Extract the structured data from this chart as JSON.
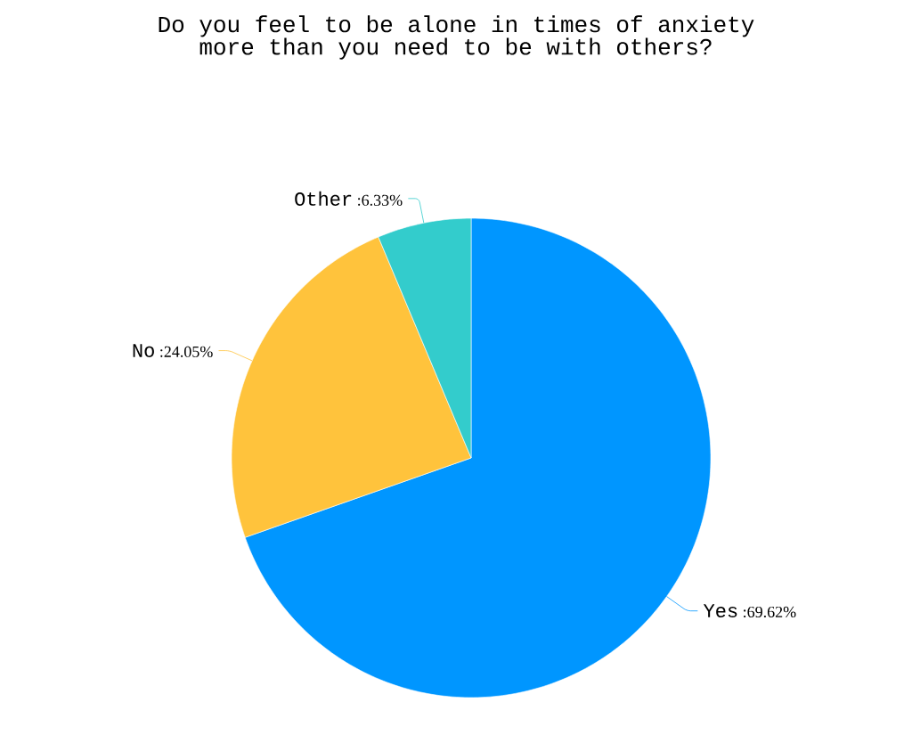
{
  "chart_data": {
    "type": "pie",
    "title": "Do you feel to be alone in times of anxiety more than you need to be with others?",
    "categories": [
      "Yes",
      "No",
      "Other"
    ],
    "values": [
      69.62,
      24.05,
      6.33
    ],
    "colors": [
      "#0096ff",
      "#ffc33c",
      "#33cccc"
    ],
    "value_labels": [
      ":69.62%",
      ":24.05%",
      ":6.33%"
    ]
  }
}
